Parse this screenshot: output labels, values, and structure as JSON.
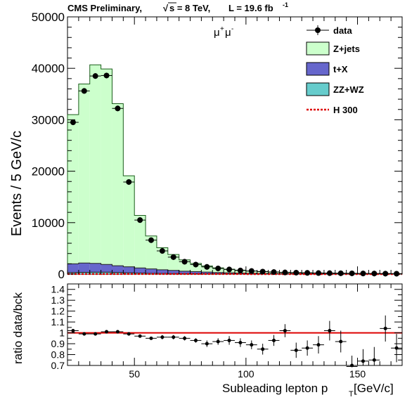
{
  "header": {
    "experiment": "CMS Preliminary,",
    "energy": "s = 8 TeV,",
    "lumi_label": "L = 19.6 fb",
    "lumi_exp": "-1"
  },
  "channel": {
    "base1": "μ",
    "sup1": "+",
    "base2": "μ",
    "sup2": "-"
  },
  "chart_data": [
    {
      "type": "bar",
      "title": "",
      "ylabel": "Events / 5 GeV/c",
      "xlim": [
        20,
        170
      ],
      "ylim": [
        0,
        50000
      ],
      "y_ticks": [
        0,
        10000,
        20000,
        30000,
        40000,
        50000
      ],
      "y_tick_labels": [
        "0",
        "10000",
        "20000",
        "30000",
        "40000",
        "50000"
      ],
      "bin_edges": [
        20,
        25,
        30,
        35,
        40,
        45,
        50,
        55,
        60,
        65,
        70,
        75,
        80,
        85,
        90,
        95,
        100,
        105,
        110,
        115,
        120,
        125,
        130,
        135,
        140,
        145,
        150,
        155,
        160,
        165,
        170
      ],
      "legend_position": "top-right",
      "series": [
        {
          "name": "Z+jets",
          "kind": "stacked-fill",
          "color": "#ccffcc",
          "values": [
            29000,
            34800,
            38600,
            38000,
            31500,
            17700,
            10200,
            6400,
            4300,
            3100,
            2200,
            1600,
            1200,
            900,
            700,
            560,
            450,
            370,
            310,
            260,
            220,
            190,
            160,
            140,
            120,
            105,
            90,
            80,
            70,
            62
          ]
        },
        {
          "name": "t+X",
          "kind": "stacked-fill",
          "color": "#6666cc",
          "values": [
            1700,
            1800,
            1700,
            1500,
            1300,
            1150,
            1000,
            850,
            700,
            600,
            480,
            400,
            330,
            260,
            210,
            170,
            140,
            120,
            100,
            80,
            70,
            60,
            50,
            45,
            40,
            35,
            30,
            25,
            22,
            20
          ]
        },
        {
          "name": "ZZ+WZ",
          "kind": "stacked-fill",
          "color": "#66cccc",
          "values": [
            300,
            350,
            380,
            370,
            330,
            260,
            200,
            160,
            130,
            110,
            90,
            75,
            60,
            50,
            40,
            35,
            30,
            25,
            22,
            20,
            18,
            16,
            14,
            12,
            10,
            9,
            8,
            7,
            6,
            5
          ]
        },
        {
          "name": "H 300",
          "kind": "dashed-line",
          "color": "#dd0000",
          "values": [
            10,
            12,
            14,
            15,
            16,
            16,
            16,
            16,
            15,
            15,
            14,
            13,
            12,
            11,
            10,
            9,
            8,
            7,
            7,
            6,
            5,
            5,
            4,
            4,
            4,
            3,
            3,
            3,
            2,
            2
          ]
        },
        {
          "name": "data",
          "kind": "points",
          "color": "#000000",
          "values": [
            29500,
            35600,
            38500,
            38600,
            32200,
            17900,
            10500,
            6600,
            4500,
            3300,
            2400,
            1850,
            1400,
            1100,
            900,
            700,
            600,
            480,
            400,
            320,
            280,
            240,
            200,
            180,
            160,
            140,
            120,
            110,
            90,
            75
          ]
        }
      ]
    },
    {
      "type": "scatter",
      "ylabel": "ratio data/bck",
      "xlabel_main": "Subleading lepton p",
      "xlabel_sub": "T",
      "xlabel_unit": " [GeV/c]",
      "xlim": [
        20,
        170
      ],
      "ylim": [
        0.7,
        1.45
      ],
      "x_ticks": [
        50,
        100,
        150
      ],
      "x_tick_labels": [
        "50",
        "100",
        "150"
      ],
      "y_ticks": [
        0.7,
        0.8,
        0.9,
        1.0,
        1.1,
        1.2,
        1.3,
        1.4
      ],
      "y_tick_labels": [
        "0.7",
        "0.8",
        "0.9",
        "1",
        "1.1",
        "1.2",
        "1.3",
        "1.4"
      ],
      "reference_line": 1.0,
      "reference_color": "#dd0000",
      "x": [
        22.5,
        27.5,
        32.5,
        37.5,
        42.5,
        47.5,
        52.5,
        57.5,
        62.5,
        67.5,
        72.5,
        77.5,
        82.5,
        87.5,
        92.5,
        97.5,
        102.5,
        107.5,
        112.5,
        117.5,
        122.5,
        127.5,
        132.5,
        137.5,
        142.5,
        147.5,
        152.5,
        157.5,
        162.5,
        167.5
      ],
      "y": [
        1.02,
        0.99,
        0.99,
        1.01,
        1.01,
        0.99,
        0.97,
        0.95,
        0.96,
        0.96,
        0.95,
        0.93,
        0.9,
        0.92,
        0.93,
        0.91,
        0.89,
        0.85,
        0.93,
        1.02,
        0.84,
        0.86,
        0.89,
        1.02,
        0.92,
        0.69,
        0.74,
        0.75,
        1.04,
        0.86
      ],
      "yerr": [
        0.01,
        0.01,
        0.01,
        0.01,
        0.01,
        0.01,
        0.01,
        0.01,
        0.02,
        0.02,
        0.02,
        0.02,
        0.03,
        0.03,
        0.04,
        0.04,
        0.04,
        0.05,
        0.05,
        0.06,
        0.07,
        0.07,
        0.08,
        0.09,
        0.1,
        0.1,
        0.11,
        0.12,
        0.12,
        0.13
      ]
    }
  ]
}
